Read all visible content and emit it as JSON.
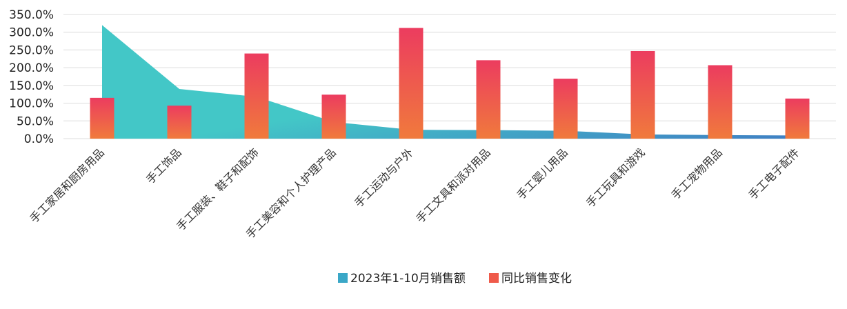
{
  "chart_data": {
    "type": "bar",
    "categories": [
      "手工家居和厨房用品",
      "手工饰品",
      "手工服装、鞋子和配饰",
      "手工美容和个人护理产品",
      "手工运动与户外",
      "手工文具和派对用品",
      "手工婴儿用品",
      "手工玩具和游戏",
      "手工宠物用品",
      "手工电子配件"
    ],
    "series": [
      {
        "name": "2023年1-10月销售额",
        "type": "area",
        "values": [
          320,
          140,
          118,
          47,
          25,
          24,
          22,
          12,
          10,
          9
        ]
      },
      {
        "name": "同比销售变化",
        "type": "bar",
        "values": [
          115,
          93,
          240,
          124,
          312,
          221,
          169,
          247,
          207,
          113
        ]
      }
    ],
    "y_ticks": [
      "0.0%",
      "50.0%",
      "100.0%",
      "150.0%",
      "200.0%",
      "250.0%",
      "300.0%",
      "350.0%"
    ],
    "ylim": [
      0,
      350
    ],
    "grid": true,
    "legend_position": "bottom-center",
    "colors": {
      "area_top": "#43c7c7",
      "area_bottom": "#3f7fc4",
      "bar_top": "#ec3c5f",
      "bar_bottom": "#f07a3c",
      "legend_area": "#3aa7c7",
      "legend_bar": "#ef5a4a",
      "grid": "#dcdcdc"
    }
  }
}
